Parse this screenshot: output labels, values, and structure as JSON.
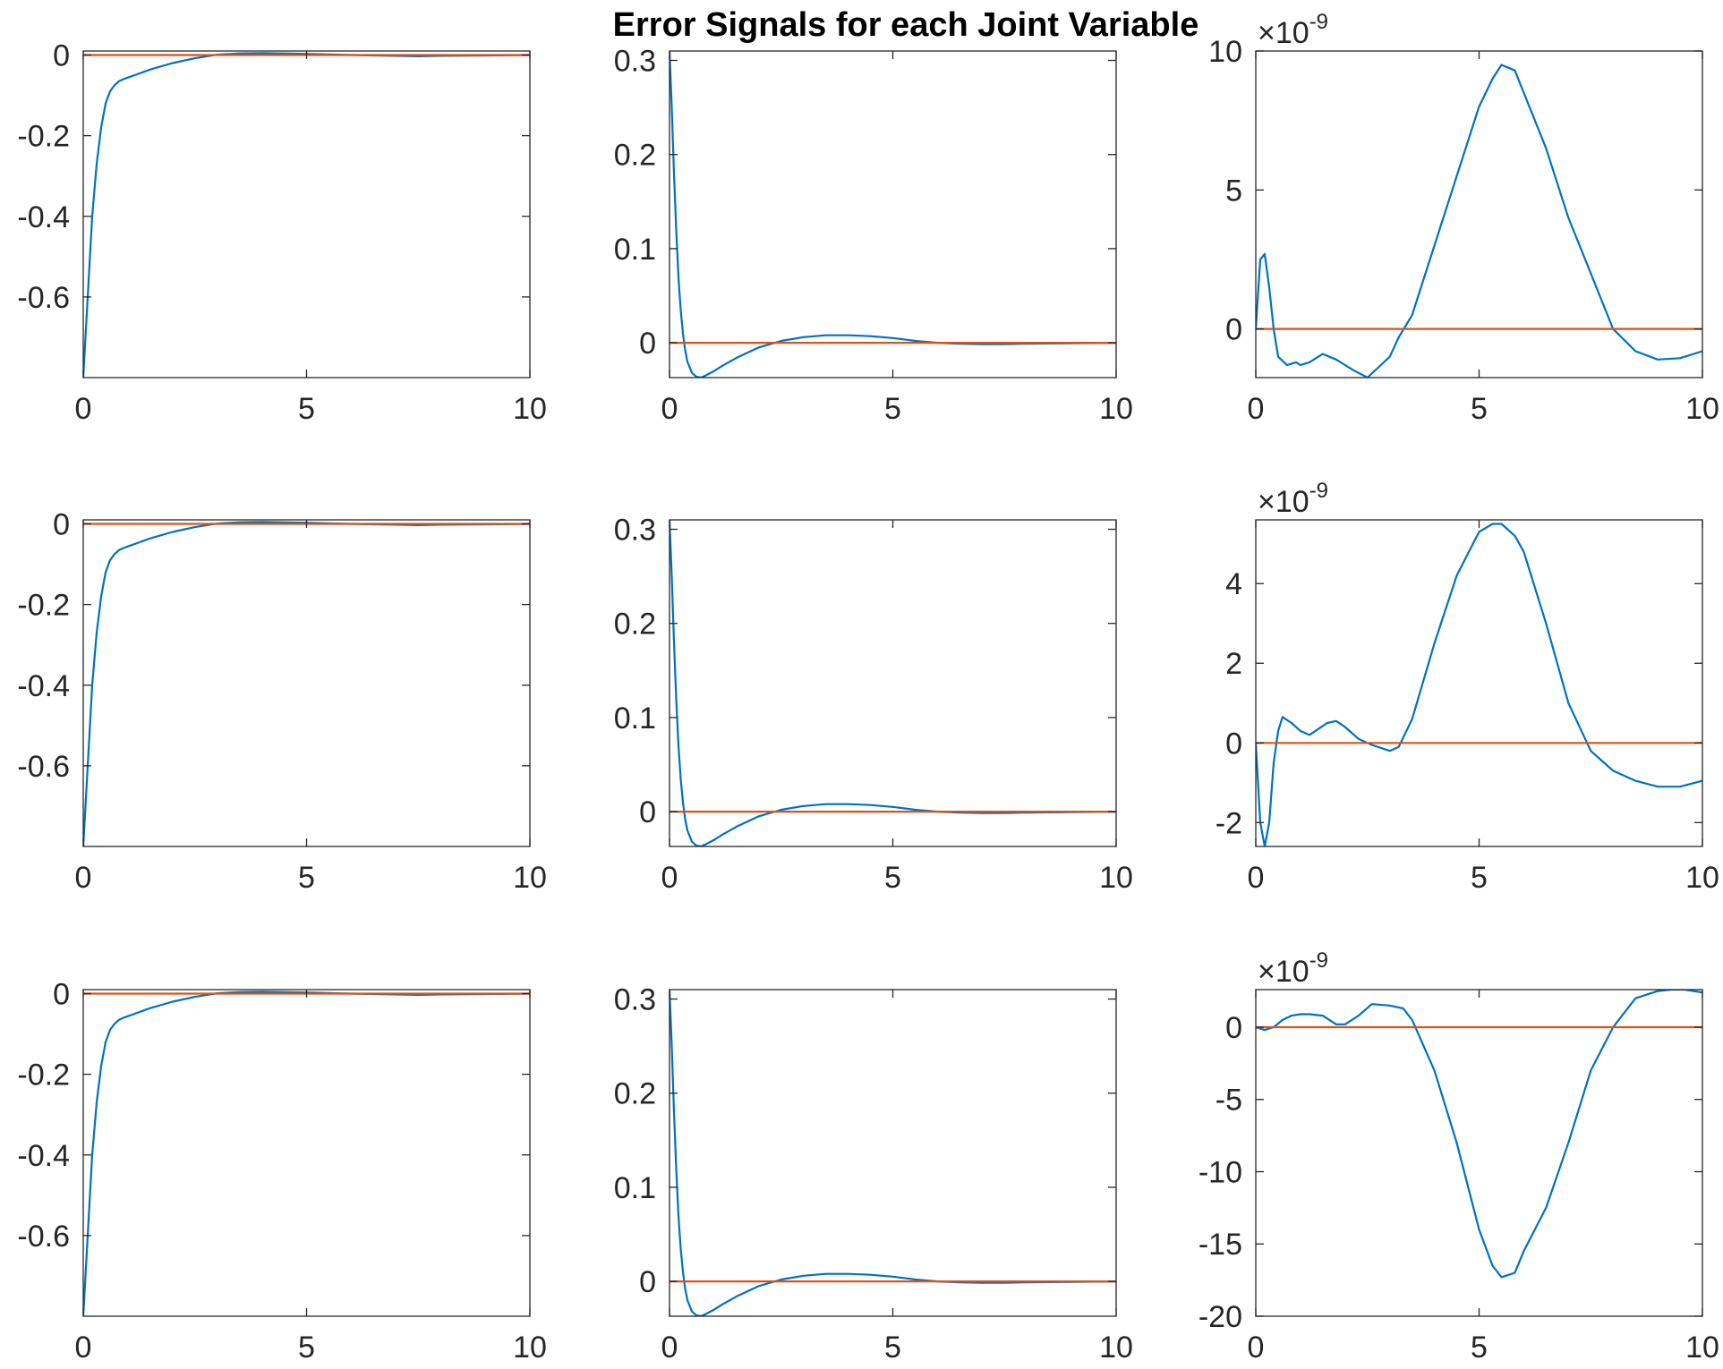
{
  "title": "Error Signals for each Joint Variable",
  "colors": {
    "series1": "#0072BD",
    "series2": "#D95319",
    "axis": "#262626"
  },
  "chart_data": [
    {
      "type": "line",
      "row": 1,
      "col": 1,
      "xlim": [
        0,
        10
      ],
      "ylim": [
        -0.8,
        0.01
      ],
      "xticks": [
        "0",
        "5",
        "10"
      ],
      "xtick_values": [
        0,
        5,
        10
      ],
      "yticks": [
        "0",
        "-0.2",
        "-0.4",
        "-0.6"
      ],
      "ytick_values": [
        0,
        -0.2,
        -0.4,
        -0.6
      ],
      "exponent": "",
      "series": [
        {
          "x": [
            0,
            0.05,
            0.1,
            0.15,
            0.2,
            0.3,
            0.4,
            0.5,
            0.6,
            0.7,
            0.8,
            0.9,
            1.0,
            1.2,
            1.5,
            2.0,
            2.5,
            3.0,
            3.5,
            4.0,
            5.0,
            6.0,
            7.0,
            7.5,
            8.0,
            9.0,
            10.0
          ],
          "y": [
            -0.8,
            -0.7,
            -0.6,
            -0.5,
            -0.4,
            -0.27,
            -0.18,
            -0.12,
            -0.09,
            -0.075,
            -0.065,
            -0.06,
            -0.056,
            -0.048,
            -0.036,
            -0.02,
            -0.008,
            0.001,
            0.004,
            0.005,
            0.003,
            0.0,
            -0.002,
            -0.003,
            -0.002,
            -0.001,
            0.0
          ]
        },
        {
          "x": [
            0,
            10
          ],
          "y": [
            0,
            0
          ]
        }
      ]
    },
    {
      "type": "line",
      "row": 1,
      "col": 2,
      "xlim": [
        0,
        10
      ],
      "ylim": [
        -0.037,
        0.31
      ],
      "xticks": [
        "0",
        "5",
        "10"
      ],
      "xtick_values": [
        0,
        5,
        10
      ],
      "yticks": [
        "0",
        "0.1",
        "0.2",
        "0.3"
      ],
      "ytick_values": [
        0,
        0.1,
        0.2,
        0.3
      ],
      "exponent": "",
      "series": [
        {
          "x": [
            0,
            0.05,
            0.1,
            0.15,
            0.2,
            0.25,
            0.3,
            0.35,
            0.4,
            0.5,
            0.6,
            0.7,
            0.8,
            1.0,
            1.2,
            1.5,
            2.0,
            2.5,
            3.0,
            3.5,
            4.0,
            4.5,
            5.0,
            5.5,
            6.0,
            6.5,
            7.0,
            7.5,
            8.0,
            9.0,
            10.0
          ],
          "y": [
            0.31,
            0.25,
            0.18,
            0.12,
            0.07,
            0.035,
            0.01,
            -0.008,
            -0.02,
            -0.032,
            -0.036,
            -0.037,
            -0.035,
            -0.03,
            -0.024,
            -0.016,
            -0.005,
            0.002,
            0.006,
            0.008,
            0.008,
            0.007,
            0.005,
            0.002,
            0.0,
            -0.001,
            -0.0015,
            -0.0015,
            -0.001,
            -0.0005,
            0.0
          ]
        },
        {
          "x": [
            0,
            10
          ],
          "y": [
            0,
            0
          ]
        }
      ]
    },
    {
      "type": "line",
      "row": 1,
      "col": 3,
      "xlim": [
        0,
        10
      ],
      "ylim": [
        -1.75,
        10
      ],
      "xticks": [
        "0",
        "5",
        "10"
      ],
      "xtick_values": [
        0,
        5,
        10
      ],
      "yticks": [
        "0",
        "5",
        "10"
      ],
      "ytick_values": [
        0,
        5,
        10
      ],
      "exponent": "-9",
      "series": [
        {
          "x": [
            0,
            0.1,
            0.2,
            0.3,
            0.4,
            0.5,
            0.7,
            0.9,
            1.0,
            1.2,
            1.5,
            1.8,
            2.0,
            2.2,
            2.5,
            2.8,
            3.0,
            3.2,
            3.5,
            3.8,
            4.0,
            4.5,
            5.0,
            5.3,
            5.5,
            5.8,
            6.0,
            6.5,
            7.0,
            7.5,
            8.0,
            8.5,
            9.0,
            9.5,
            10.0
          ],
          "y": [
            0,
            2.5,
            2.7,
            1.5,
            0,
            -1.0,
            -1.3,
            -1.2,
            -1.3,
            -1.2,
            -0.9,
            -1.1,
            -1.3,
            -1.5,
            -1.75,
            -1.3,
            -1.0,
            -0.3,
            0.5,
            2.0,
            3.0,
            5.5,
            8.0,
            9.0,
            9.5,
            9.3,
            8.5,
            6.5,
            4.0,
            2.0,
            0,
            -0.8,
            -1.1,
            -1.05,
            -0.8
          ]
        },
        {
          "x": [
            0,
            10
          ],
          "y": [
            0,
            0
          ]
        }
      ]
    },
    {
      "type": "line",
      "row": 2,
      "col": 1,
      "xlim": [
        0,
        10
      ],
      "ylim": [
        -0.8,
        0.01
      ],
      "xticks": [
        "0",
        "5",
        "10"
      ],
      "xtick_values": [
        0,
        5,
        10
      ],
      "yticks": [
        "0",
        "-0.2",
        "-0.4",
        "-0.6"
      ],
      "ytick_values": [
        0,
        -0.2,
        -0.4,
        -0.6
      ],
      "exponent": "",
      "series": [
        {
          "x": [
            0,
            0.05,
            0.1,
            0.15,
            0.2,
            0.3,
            0.4,
            0.5,
            0.6,
            0.7,
            0.8,
            0.9,
            1.0,
            1.2,
            1.5,
            2.0,
            2.5,
            3.0,
            3.5,
            4.0,
            5.0,
            6.0,
            7.0,
            7.5,
            8.0,
            9.0,
            10.0
          ],
          "y": [
            -0.8,
            -0.7,
            -0.6,
            -0.5,
            -0.4,
            -0.27,
            -0.18,
            -0.12,
            -0.09,
            -0.075,
            -0.065,
            -0.06,
            -0.056,
            -0.048,
            -0.036,
            -0.02,
            -0.008,
            0.001,
            0.004,
            0.005,
            0.003,
            0.0,
            -0.002,
            -0.003,
            -0.002,
            -0.001,
            0.0
          ]
        },
        {
          "x": [
            0,
            10
          ],
          "y": [
            0,
            0
          ]
        }
      ]
    },
    {
      "type": "line",
      "row": 2,
      "col": 2,
      "xlim": [
        0,
        10
      ],
      "ylim": [
        -0.037,
        0.31
      ],
      "xticks": [
        "0",
        "5",
        "10"
      ],
      "xtick_values": [
        0,
        5,
        10
      ],
      "yticks": [
        "0",
        "0.1",
        "0.2",
        "0.3"
      ],
      "ytick_values": [
        0,
        0.1,
        0.2,
        0.3
      ],
      "exponent": "",
      "series": [
        {
          "x": [
            0,
            0.05,
            0.1,
            0.15,
            0.2,
            0.25,
            0.3,
            0.35,
            0.4,
            0.5,
            0.6,
            0.7,
            0.8,
            1.0,
            1.2,
            1.5,
            2.0,
            2.5,
            3.0,
            3.5,
            4.0,
            4.5,
            5.0,
            5.5,
            6.0,
            6.5,
            7.0,
            7.5,
            8.0,
            9.0,
            10.0
          ],
          "y": [
            0.31,
            0.25,
            0.18,
            0.12,
            0.07,
            0.035,
            0.01,
            -0.008,
            -0.02,
            -0.032,
            -0.036,
            -0.037,
            -0.035,
            -0.03,
            -0.024,
            -0.016,
            -0.005,
            0.002,
            0.006,
            0.008,
            0.008,
            0.007,
            0.005,
            0.002,
            0.0,
            -0.001,
            -0.0015,
            -0.0015,
            -0.001,
            -0.0005,
            0.0
          ]
        },
        {
          "x": [
            0,
            10
          ],
          "y": [
            0,
            0
          ]
        }
      ]
    },
    {
      "type": "line",
      "row": 2,
      "col": 3,
      "xlim": [
        0,
        10
      ],
      "ylim": [
        -2.6,
        5.6
      ],
      "xticks": [
        "0",
        "5",
        "10"
      ],
      "xtick_values": [
        0,
        5,
        10
      ],
      "yticks": [
        "-2",
        "0",
        "2",
        "4"
      ],
      "ytick_values": [
        -2,
        0,
        2,
        4
      ],
      "exponent": "-9",
      "series": [
        {
          "x": [
            0,
            0.1,
            0.2,
            0.3,
            0.4,
            0.5,
            0.6,
            0.8,
            1.0,
            1.2,
            1.4,
            1.6,
            1.8,
            2.0,
            2.3,
            2.6,
            3.0,
            3.2,
            3.5,
            4.0,
            4.5,
            5.0,
            5.3,
            5.5,
            5.8,
            6.0,
            6.5,
            7.0,
            7.5,
            7.8,
            8.0,
            8.5,
            9.0,
            9.5,
            10.0
          ],
          "y": [
            0,
            -2.0,
            -2.6,
            -2.0,
            -0.5,
            0.3,
            0.65,
            0.5,
            0.3,
            0.2,
            0.35,
            0.5,
            0.55,
            0.4,
            0.1,
            -0.05,
            -0.2,
            -0.1,
            0.6,
            2.5,
            4.2,
            5.3,
            5.5,
            5.5,
            5.2,
            4.8,
            3.0,
            1.0,
            -0.2,
            -0.5,
            -0.7,
            -0.95,
            -1.1,
            -1.1,
            -0.95
          ]
        },
        {
          "x": [
            0,
            10
          ],
          "y": [
            0,
            0
          ]
        }
      ]
    },
    {
      "type": "line",
      "row": 3,
      "col": 1,
      "xlim": [
        0,
        10
      ],
      "ylim": [
        -0.8,
        0.01
      ],
      "xticks": [
        "0",
        "5",
        "10"
      ],
      "xtick_values": [
        0,
        5,
        10
      ],
      "yticks": [
        "0",
        "-0.2",
        "-0.4",
        "-0.6"
      ],
      "ytick_values": [
        0,
        -0.2,
        -0.4,
        -0.6
      ],
      "exponent": "",
      "series": [
        {
          "x": [
            0,
            0.05,
            0.1,
            0.15,
            0.2,
            0.3,
            0.4,
            0.5,
            0.6,
            0.7,
            0.8,
            0.9,
            1.0,
            1.2,
            1.5,
            2.0,
            2.5,
            3.0,
            3.5,
            4.0,
            5.0,
            6.0,
            7.0,
            7.5,
            8.0,
            9.0,
            10.0
          ],
          "y": [
            -0.8,
            -0.7,
            -0.6,
            -0.5,
            -0.4,
            -0.27,
            -0.18,
            -0.12,
            -0.09,
            -0.075,
            -0.065,
            -0.06,
            -0.056,
            -0.048,
            -0.036,
            -0.02,
            -0.008,
            0.001,
            0.004,
            0.005,
            0.003,
            0.0,
            -0.002,
            -0.003,
            -0.002,
            -0.001,
            0.0
          ]
        },
        {
          "x": [
            0,
            10
          ],
          "y": [
            0,
            0
          ]
        }
      ]
    },
    {
      "type": "line",
      "row": 3,
      "col": 2,
      "xlim": [
        0,
        10
      ],
      "ylim": [
        -0.037,
        0.31
      ],
      "xticks": [
        "0",
        "5",
        "10"
      ],
      "xtick_values": [
        0,
        5,
        10
      ],
      "yticks": [
        "0",
        "0.1",
        "0.2",
        "0.3"
      ],
      "ytick_values": [
        0,
        0.1,
        0.2,
        0.3
      ],
      "exponent": "",
      "series": [
        {
          "x": [
            0,
            0.05,
            0.1,
            0.15,
            0.2,
            0.25,
            0.3,
            0.35,
            0.4,
            0.5,
            0.6,
            0.7,
            0.8,
            1.0,
            1.2,
            1.5,
            2.0,
            2.5,
            3.0,
            3.5,
            4.0,
            4.5,
            5.0,
            5.5,
            6.0,
            6.5,
            7.0,
            7.5,
            8.0,
            9.0,
            10.0
          ],
          "y": [
            0.31,
            0.25,
            0.18,
            0.12,
            0.07,
            0.035,
            0.01,
            -0.008,
            -0.02,
            -0.032,
            -0.036,
            -0.037,
            -0.035,
            -0.03,
            -0.024,
            -0.016,
            -0.005,
            0.002,
            0.006,
            0.008,
            0.008,
            0.007,
            0.005,
            0.002,
            0.0,
            -0.001,
            -0.0015,
            -0.0015,
            -0.001,
            -0.0005,
            0.0
          ]
        },
        {
          "x": [
            0,
            10
          ],
          "y": [
            0,
            0
          ]
        }
      ]
    },
    {
      "type": "line",
      "row": 3,
      "col": 3,
      "xlim": [
        0,
        10
      ],
      "ylim": [
        -20,
        2.6
      ],
      "xticks": [
        "0",
        "5",
        "10"
      ],
      "xtick_values": [
        0,
        5,
        10
      ],
      "yticks": [
        "-20",
        "-15",
        "-10",
        "-5",
        "0"
      ],
      "ytick_values": [
        -20,
        -15,
        -10,
        -5,
        0
      ],
      "exponent": "-9",
      "series": [
        {
          "x": [
            0,
            0.2,
            0.4,
            0.6,
            0.8,
            1.0,
            1.2,
            1.5,
            1.8,
            2.0,
            2.3,
            2.6,
            3.0,
            3.3,
            3.5,
            4.0,
            4.5,
            5.0,
            5.3,
            5.5,
            5.8,
            6.0,
            6.5,
            7.0,
            7.5,
            8.0,
            8.5,
            9.0,
            9.3,
            9.6,
            10.0
          ],
          "y": [
            0,
            -0.2,
            0,
            0.5,
            0.8,
            0.9,
            0.9,
            0.8,
            0.2,
            0.2,
            0.8,
            1.6,
            1.5,
            1.3,
            0.5,
            -3.0,
            -8.0,
            -14.0,
            -16.5,
            -17.3,
            -17.0,
            -15.5,
            -12.5,
            -8.0,
            -3.0,
            0.0,
            2.0,
            2.5,
            2.6,
            2.6,
            2.4
          ]
        },
        {
          "x": [
            0,
            10
          ],
          "y": [
            0,
            0
          ]
        }
      ]
    }
  ]
}
